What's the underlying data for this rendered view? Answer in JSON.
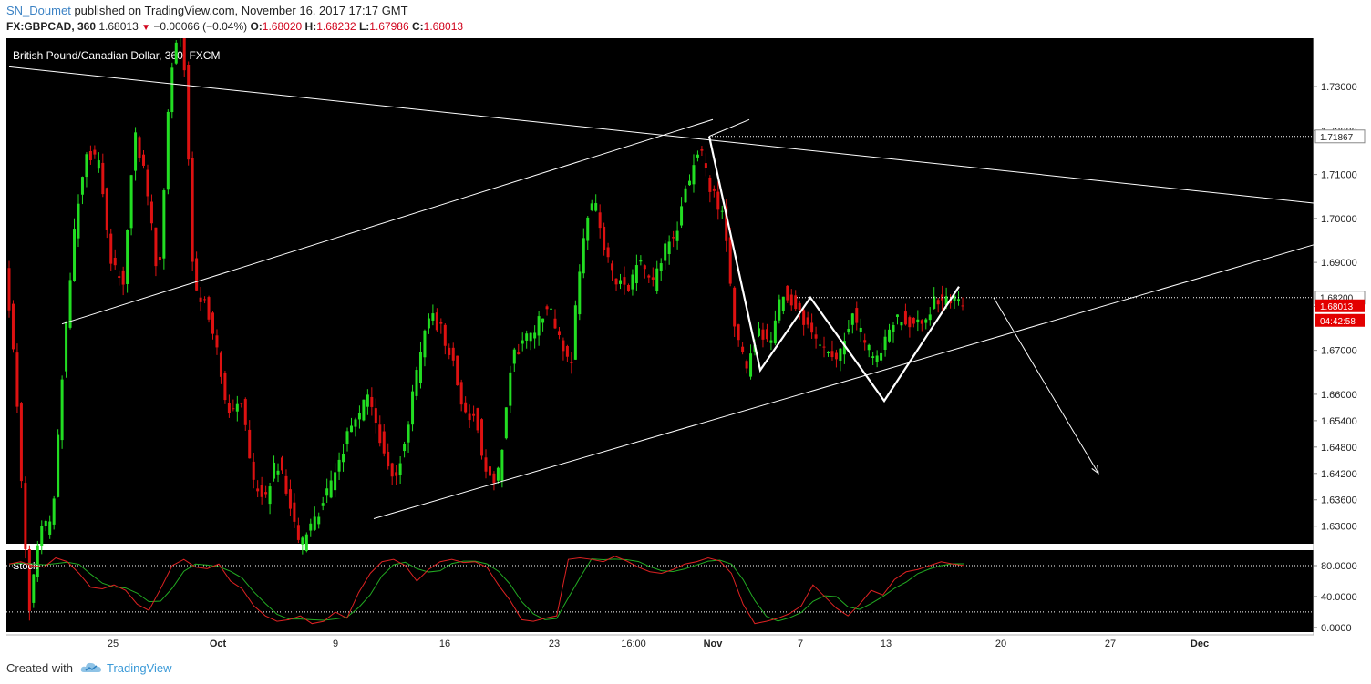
{
  "header": {
    "author": "SN_Doumet",
    "published": "published on TradingView.com, November 16, 2017 17:17 GMT",
    "symbol": "FX:GBPCAD, 360",
    "last": "1.68013",
    "arrow": "▼",
    "change": "−0.00066 (−0.04%)",
    "o_label": "O:",
    "o": "1.68020",
    "h_label": "H:",
    "h": "1.68232",
    "l_label": "L:",
    "l": "1.67986",
    "c_label": "C:",
    "c": "1.68013"
  },
  "footer": {
    "created": "Created with",
    "brand": "TradingView"
  },
  "chart_data": {
    "type": "candlestick",
    "title": "British Pound/Canadian Dollar, 360, FXCM",
    "background": "#000000",
    "up_color": "#22dd22",
    "down_color": "#dd1111",
    "ylim": [
      1.626,
      1.741
    ],
    "y_ticks": [
      "1.73000",
      "1.72000",
      "1.71000",
      "1.70000",
      "1.69000",
      "1.68000",
      "1.67000",
      "1.66000",
      "1.65400",
      "1.64800",
      "1.64200",
      "1.63600",
      "1.63000"
    ],
    "x_ticks": [
      "25",
      "Oct",
      "9",
      "16",
      "23",
      "16:00",
      "Nov",
      "7",
      "13",
      "20",
      "27",
      "Dec"
    ],
    "price_labels": [
      {
        "text": "1.71867",
        "value": 1.71867,
        "style": "white"
      },
      {
        "text": "1.68200",
        "value": 1.682,
        "style": "white"
      },
      {
        "text": "1.68013",
        "value": 1.68013,
        "style": "red"
      },
      {
        "text": "04:42:58",
        "value": null,
        "style": "red"
      }
    ],
    "path": [
      1.69,
      1.66,
      1.61,
      1.63,
      1.63,
      1.67,
      1.7,
      1.715,
      1.712,
      1.69,
      1.685,
      1.72,
      1.708,
      1.685,
      1.73,
      1.75,
      1.685,
      1.68,
      1.67,
      1.655,
      1.66,
      1.64,
      1.635,
      1.645,
      1.638,
      1.625,
      1.63,
      1.635,
      1.642,
      1.65,
      1.655,
      1.66,
      1.648,
      1.64,
      1.65,
      1.665,
      1.678,
      1.675,
      1.668,
      1.655,
      1.655,
      1.64,
      1.642,
      1.668,
      1.672,
      1.675,
      1.68,
      1.675,
      1.665,
      1.695,
      1.705,
      1.692,
      1.685,
      1.685,
      1.69,
      1.685,
      1.693,
      1.697,
      1.708,
      1.716,
      1.706,
      1.701,
      1.675,
      1.665,
      1.676,
      1.67,
      1.684,
      1.68,
      1.676,
      1.671,
      1.668,
      1.67,
      1.678,
      1.672,
      1.667,
      1.674,
      1.678,
      1.675,
      1.676,
      1.682,
      1.681,
      1.683
    ],
    "trendlines": [
      {
        "from": [
          "Sep 14",
          1.7345
        ],
        "to": [
          "Dec 4",
          1.7035
        ]
      },
      {
        "from": [
          "Sep 21",
          1.676
        ],
        "to": [
          "Nov 2",
          1.7225
        ]
      },
      {
        "from": [
          "Oct 11",
          1.6317
        ],
        "to": [
          "Dec 4",
          1.694
        ]
      }
    ],
    "pattern": [
      [
        "Nov 1",
        1.7187
      ],
      [
        "Nov 4",
        1.6655
      ],
      [
        "Nov 8",
        1.682
      ],
      [
        "Nov 13",
        1.6585
      ],
      [
        "Nov 17",
        1.6845
      ]
    ],
    "projection_arrow": {
      "from": [
        "Nov 18",
        1.682
      ],
      "to": [
        "Nov 25",
        1.642
      ]
    },
    "stochastic": {
      "label": "Stoch",
      "ylim": [
        -6,
        100
      ],
      "levels": [
        80,
        20
      ],
      "y_ticks": [
        "80.0000",
        "40.0000",
        "0.0000"
      ],
      "k_color": "#dd2222",
      "d_color": "#22aa22",
      "k": [
        82,
        85,
        80,
        78,
        90,
        85,
        70,
        52,
        50,
        55,
        48,
        30,
        22,
        50,
        80,
        88,
        78,
        76,
        82,
        60,
        50,
        28,
        15,
        8,
        10,
        15,
        5,
        8,
        20,
        12,
        45,
        70,
        85,
        88,
        80,
        60,
        75,
        85,
        88,
        84,
        85,
        78,
        55,
        35,
        10,
        8,
        12,
        15,
        88,
        90,
        88,
        85,
        92,
        86,
        78,
        72,
        70,
        75,
        82,
        85,
        90,
        86,
        70,
        30,
        5,
        8,
        12,
        18,
        28,
        55,
        40,
        25,
        15,
        30,
        48,
        42,
        62,
        72,
        75,
        80,
        85,
        82,
        80
      ]
    }
  }
}
